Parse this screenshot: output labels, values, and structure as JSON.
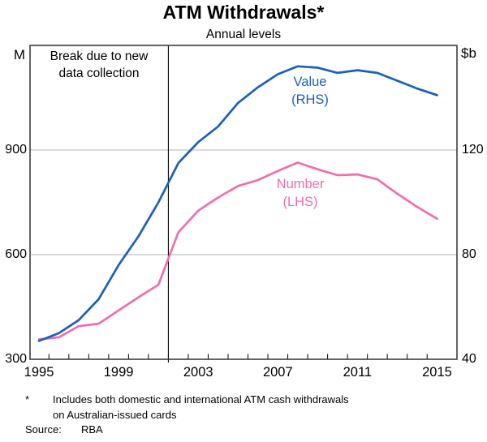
{
  "title": "ATM Withdrawals*",
  "subtitle": "Annual levels",
  "annotations": {
    "break_line1": "Break due to new",
    "break_line2": "data collection",
    "value_label_line1": "Value",
    "value_label_line2": "(RHS)",
    "number_label_line1": "Number",
    "number_label_line2": "(LHS)"
  },
  "axes": {
    "left_unit": "M",
    "right_unit": "$b"
  },
  "footnote": {
    "marker": "*",
    "line1": "Includes both domestic and international ATM cash withdrawals",
    "line2": "on Australian-issued cards"
  },
  "source": {
    "label": "Source:",
    "value": "RBA"
  },
  "colors": {
    "value_line": "#1d5fb8",
    "number_line": "#f16ead",
    "gridline": "#b3b3b3",
    "frame": "#3d3d3d",
    "break_line": "#000000"
  },
  "chart_data": {
    "type": "line",
    "title": "ATM Withdrawals*",
    "subtitle": "Annual levels",
    "grid": "horizontal",
    "x": [
      1995,
      1996,
      1997,
      1998,
      1999,
      2000,
      2001,
      2002,
      2003,
      2004,
      2005,
      2006,
      2007,
      2008,
      2009,
      2010,
      2011,
      2012,
      2013,
      2014,
      2015
    ],
    "series": [
      {
        "name": "Value (RHS)",
        "axis": "right",
        "unit": "$b",
        "values": [
          47,
          50,
          55,
          63,
          76,
          87,
          100,
          115,
          123,
          129,
          138,
          144,
          149,
          152,
          151.5,
          149.5,
          150.5,
          149.5,
          146.5,
          143.5,
          141
        ]
      },
      {
        "name": "Number (LHS)",
        "axis": "left",
        "unit": "M",
        "values": [
          357,
          363,
          395,
          402,
          440,
          478,
          514,
          664,
          726,
          764,
          797,
          814,
          840,
          864,
          845,
          828,
          830,
          816,
          775,
          737,
          703
        ]
      }
    ],
    "left_axis": {
      "label": "M",
      "range": [
        300,
        1200
      ],
      "ticks": [
        300,
        600,
        900
      ]
    },
    "right_axis": {
      "label": "$b",
      "range": [
        40,
        160
      ],
      "ticks": [
        40,
        80,
        120
      ]
    },
    "x_axis": {
      "domain": [
        1994.55,
        2016.0
      ],
      "labeled_years": [
        1995,
        1999,
        2003,
        2007,
        2011,
        2015
      ],
      "minor_tick_years": [
        1995.5,
        1996.5,
        1997.5,
        1998.5,
        1999.5,
        2000.5,
        2001.5,
        2002.5,
        2003.5,
        2004.5,
        2005.5,
        2006.5,
        2007.5,
        2008.5,
        2009.5,
        2010.5,
        2011.5,
        2012.5,
        2013.5,
        2014.5
      ]
    },
    "break_line_x": 2001.5,
    "break_note": "Break due to new data collection"
  }
}
